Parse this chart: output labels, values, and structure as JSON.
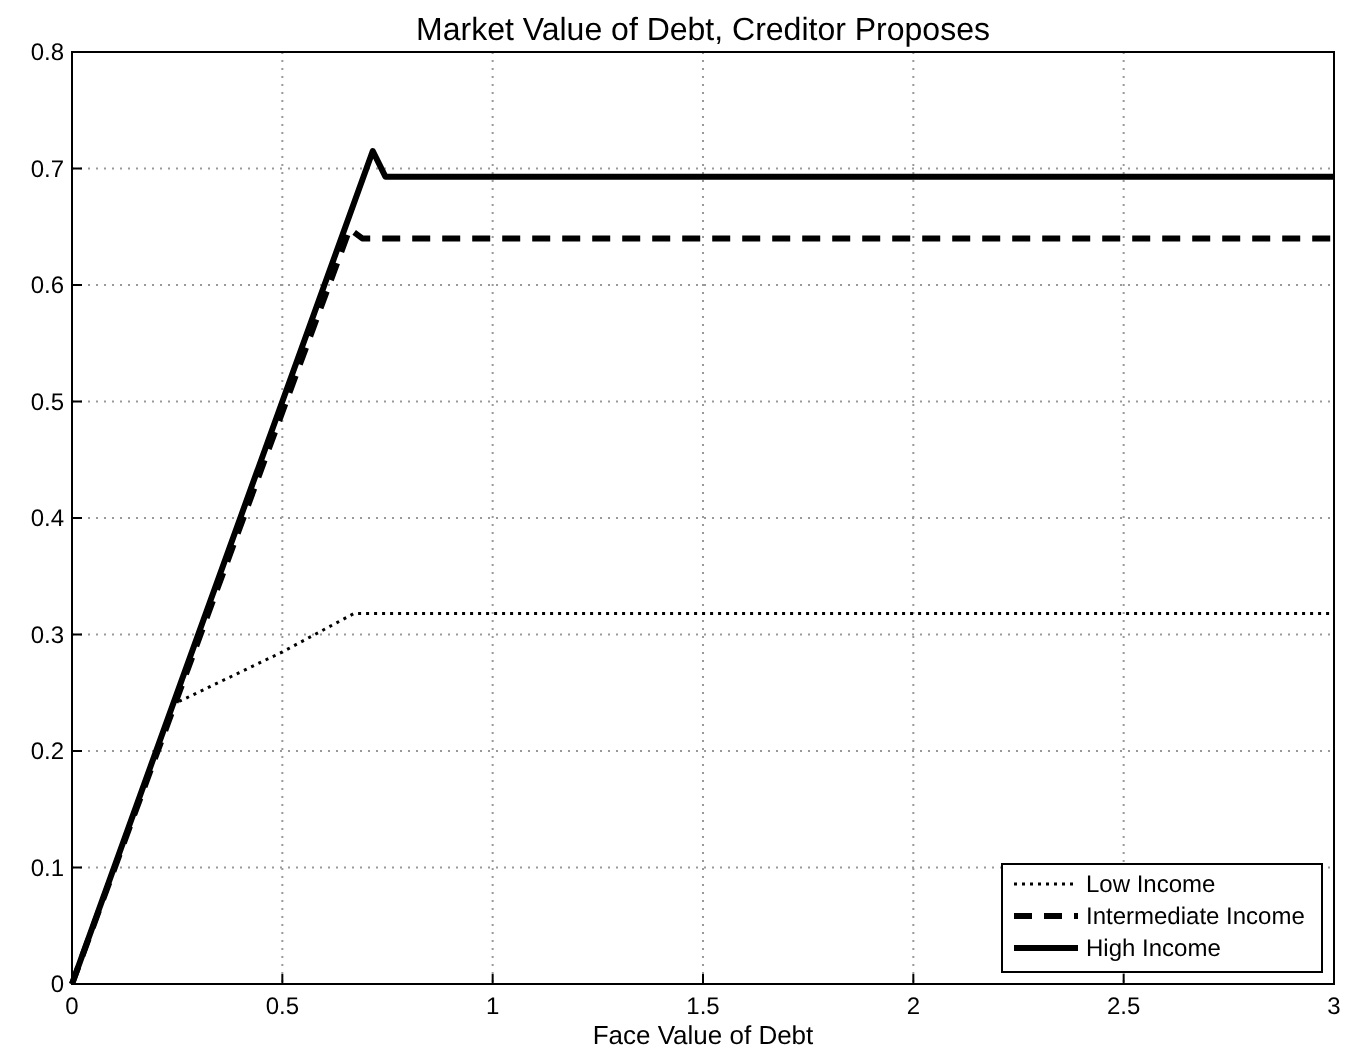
{
  "chart_data": {
    "type": "line",
    "title": "Market Value of Debt, Creditor Proposes",
    "xlabel": "Face Value of Debt",
    "xlim": [
      0,
      3
    ],
    "xticks": [
      0,
      0.5,
      1,
      1.5,
      2,
      2.5,
      3
    ],
    "ylim": [
      0,
      0.8
    ],
    "yticks": [
      0,
      0.1,
      0.2,
      0.3,
      0.4,
      0.5,
      0.6,
      0.7,
      0.8
    ],
    "grid": true,
    "legend": "bottom right",
    "series": [
      {
        "name": "Low Income",
        "color": "#000000",
        "line_style": "dotted",
        "x": [
          0,
          0.24,
          0.5,
          0.67,
          3
        ],
        "values": [
          0,
          0.24,
          0.285,
          0.318,
          0.318
        ]
      },
      {
        "name": "Intermediate Income",
        "color": "#000000",
        "line_style": "dashed",
        "x": [
          0,
          0.66,
          0.69,
          3
        ],
        "values": [
          0,
          0.648,
          0.64,
          0.64
        ]
      },
      {
        "name": "High Income",
        "color": "#000000",
        "line_style": "solid",
        "x": [
          0,
          0.715,
          0.745,
          3
        ],
        "values": [
          0,
          0.715,
          0.693,
          0.693
        ]
      }
    ]
  }
}
